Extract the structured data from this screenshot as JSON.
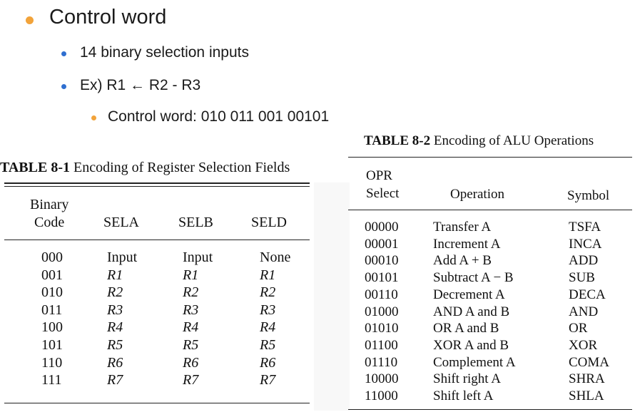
{
  "bullets": {
    "level1": "Control word",
    "level2": [
      "14 binary selection inputs",
      "Ex) R1 ← R2 - R3"
    ],
    "level3": "Control word: 010 011 001 00101"
  },
  "table1": {
    "title_bold": "TABLE 8-1",
    "title_rest": "Encoding of Register Selection Fields",
    "headers": {
      "binary": "Binary",
      "code": "Code",
      "sela": "SELA",
      "selb": "SELB",
      "seld": "SELD"
    },
    "rows": [
      [
        "000",
        "Input",
        "Input",
        "None"
      ],
      [
        "001",
        "R1",
        "R1",
        "R1"
      ],
      [
        "010",
        "R2",
        "R2",
        "R2"
      ],
      [
        "011",
        "R3",
        "R3",
        "R3"
      ],
      [
        "100",
        "R4",
        "R4",
        "R4"
      ],
      [
        "101",
        "R5",
        "R5",
        "R5"
      ],
      [
        "110",
        "R6",
        "R6",
        "R6"
      ],
      [
        "111",
        "R7",
        "R7",
        "R7"
      ]
    ]
  },
  "table2": {
    "title_bold": "TABLE 8-2",
    "title_rest": "Encoding of ALU Operations",
    "headers": {
      "opr": "OPR",
      "select": "Select",
      "operation": "Operation",
      "symbol": "Symbol"
    },
    "rows": [
      [
        "00000",
        "Transfer A",
        "TSFA"
      ],
      [
        "00001",
        "Increment A",
        "INCA"
      ],
      [
        "00010",
        "Add A + B",
        "ADD"
      ],
      [
        "00101",
        "Subtract A − B",
        "SUB"
      ],
      [
        "00110",
        "Decrement A",
        "DECA"
      ],
      [
        "01000",
        "AND A and B",
        "AND"
      ],
      [
        "01010",
        "OR A and B",
        "OR"
      ],
      [
        "01100",
        "XOR A and B",
        "XOR"
      ],
      [
        "01110",
        "Complement A",
        "COMA"
      ],
      [
        "10000",
        "Shift right A",
        "SHRA"
      ],
      [
        "11000",
        "Shift left A",
        "SHLA"
      ]
    ]
  },
  "colors": {
    "bullet_orange": "#f2a33a",
    "bullet_blue": "#2f6fd0"
  }
}
